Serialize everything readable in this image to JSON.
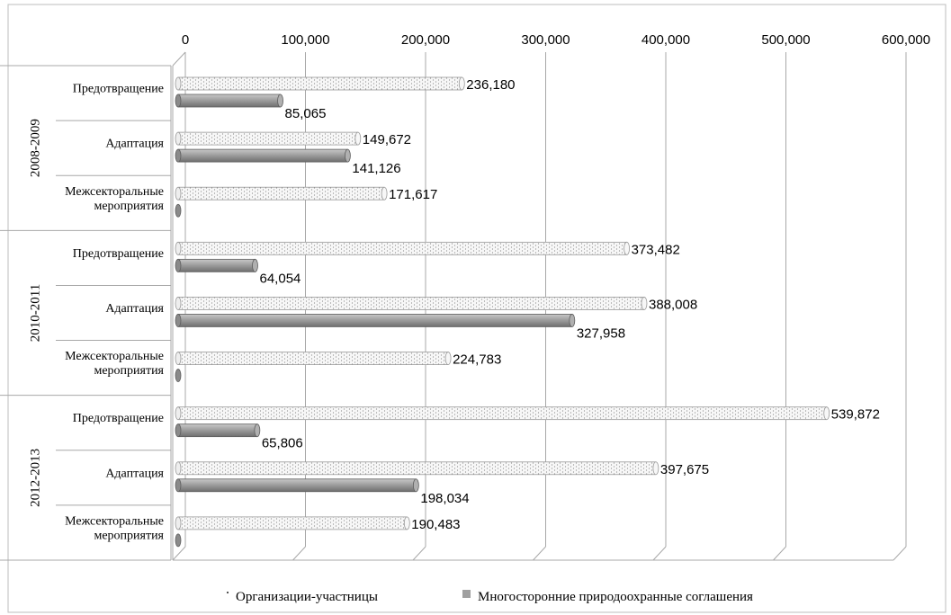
{
  "chart_data": {
    "type": "bar",
    "orientation": "horizontal",
    "xlim": [
      0,
      600000
    ],
    "x_ticks": [
      "0",
      "100,000",
      "200,000",
      "300,000",
      "400,000",
      "500,000",
      "600,000"
    ],
    "x_tick_values": [
      0,
      100000,
      200000,
      300000,
      400000,
      500000,
      600000
    ],
    "grid": true,
    "legend_position": "bottom",
    "groups": [
      {
        "label": "2008-2009",
        "categories": [
          {
            "label": [
              "Предотвращение"
            ],
            "values": [
              236180,
              85065
            ],
            "labels": [
              "236,180",
              "85,065"
            ]
          },
          {
            "label": [
              "Адаптация"
            ],
            "values": [
              149672,
              141126
            ],
            "labels": [
              "149,672",
              "141,126"
            ]
          },
          {
            "label": [
              "Межсекторальные",
              "мероприятия"
            ],
            "values": [
              171617,
              0
            ],
            "labels": [
              "171,617",
              ""
            ]
          }
        ]
      },
      {
        "label": "2010-2011",
        "categories": [
          {
            "label": [
              "Предотвращение"
            ],
            "values": [
              373482,
              64054
            ],
            "labels": [
              "373,482",
              "64,054"
            ]
          },
          {
            "label": [
              "Адаптация"
            ],
            "values": [
              388008,
              327958
            ],
            "labels": [
              "388,008",
              "327,958"
            ]
          },
          {
            "label": [
              "Межсекторальные",
              "мероприятия"
            ],
            "values": [
              224783,
              0
            ],
            "labels": [
              "224,783",
              ""
            ]
          }
        ]
      },
      {
        "label": "2012-2013",
        "categories": [
          {
            "label": [
              "Предотвращение"
            ],
            "values": [
              539872,
              65806
            ],
            "labels": [
              "539,872",
              "65,806"
            ]
          },
          {
            "label": [
              "Адаптация"
            ],
            "values": [
              397675,
              198034
            ],
            "labels": [
              "397,675",
              "198,034"
            ]
          },
          {
            "label": [
              "Межсекторальные",
              "мероприятия"
            ],
            "values": [
              190483,
              0
            ],
            "labels": [
              "190,483",
              ""
            ]
          }
        ]
      }
    ],
    "series": [
      {
        "name": "Организации-участницы",
        "color": "#f0f0f0",
        "pattern": "dotted"
      },
      {
        "name": "Многосторонние природоохранные соглашения",
        "color": "#9a9a9a",
        "pattern": "solid"
      }
    ]
  }
}
